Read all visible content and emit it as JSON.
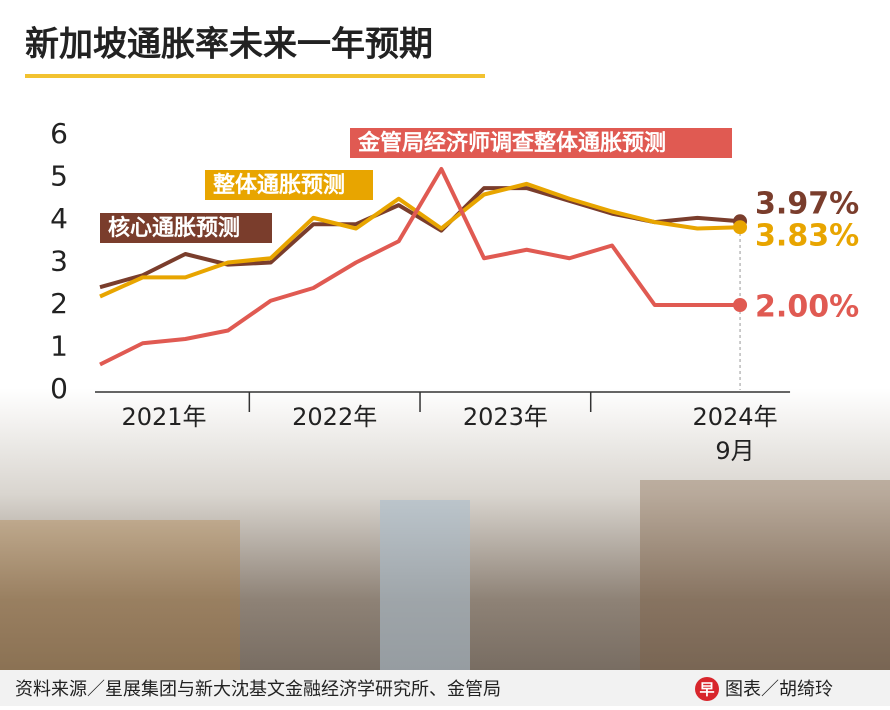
{
  "chart_data": {
    "type": "line",
    "title": "新加坡通胀率未来一年预期",
    "categories": [
      null,
      null,
      null,
      null,
      null,
      null,
      null,
      null,
      null,
      null,
      null,
      null,
      null,
      null,
      null,
      null
    ],
    "x_group_labels": [
      "2021年",
      "2022年",
      "2023年",
      "2024年"
    ],
    "last_point_label": "9月",
    "series": [
      {
        "name": "核心通胀预测",
        "color": "#7a3d2c",
        "values": [
          2.42,
          2.7,
          3.2,
          2.95,
          3.0,
          3.9,
          3.9,
          4.35,
          3.75,
          4.75,
          4.75,
          4.45,
          4.15,
          3.95,
          4.05,
          3.97
        ],
        "value_labels": [
          null,
          null,
          null,
          null,
          null,
          null,
          null,
          null,
          null,
          null,
          null,
          null,
          null,
          null,
          null,
          "3.97%"
        ]
      },
      {
        "name": "整体通胀预测",
        "color": "#e8a500",
        "values": [
          2.2,
          2.65,
          2.65,
          3.0,
          3.1,
          4.05,
          3.8,
          4.5,
          3.8,
          4.6,
          4.85,
          4.5,
          4.2,
          3.95,
          3.8,
          3.83
        ],
        "value_labels": [
          null,
          null,
          null,
          null,
          null,
          null,
          null,
          null,
          null,
          null,
          null,
          null,
          null,
          null,
          null,
          "3.83%"
        ]
      },
      {
        "name": "金管局经济师调查整体通胀预测",
        "color": "#e05a52",
        "values": [
          0.6,
          1.1,
          1.2,
          1.4,
          2.1,
          2.4,
          3.0,
          3.5,
          5.2,
          3.1,
          3.3,
          3.1,
          3.4,
          2.0,
          2.0,
          2.0
        ],
        "value_labels": [
          null,
          null,
          null,
          null,
          null,
          null,
          null,
          null,
          null,
          null,
          null,
          null,
          null,
          null,
          null,
          "2.00%"
        ]
      }
    ],
    "ylim": [
      0,
      6
    ],
    "yticks": [
      0,
      1,
      2,
      3,
      4,
      5,
      6
    ],
    "source": "资料来源／星展集团与新大沈基文金融经济学研究所、金管局",
    "logo": "早",
    "credit": "图表／胡绮玲"
  }
}
